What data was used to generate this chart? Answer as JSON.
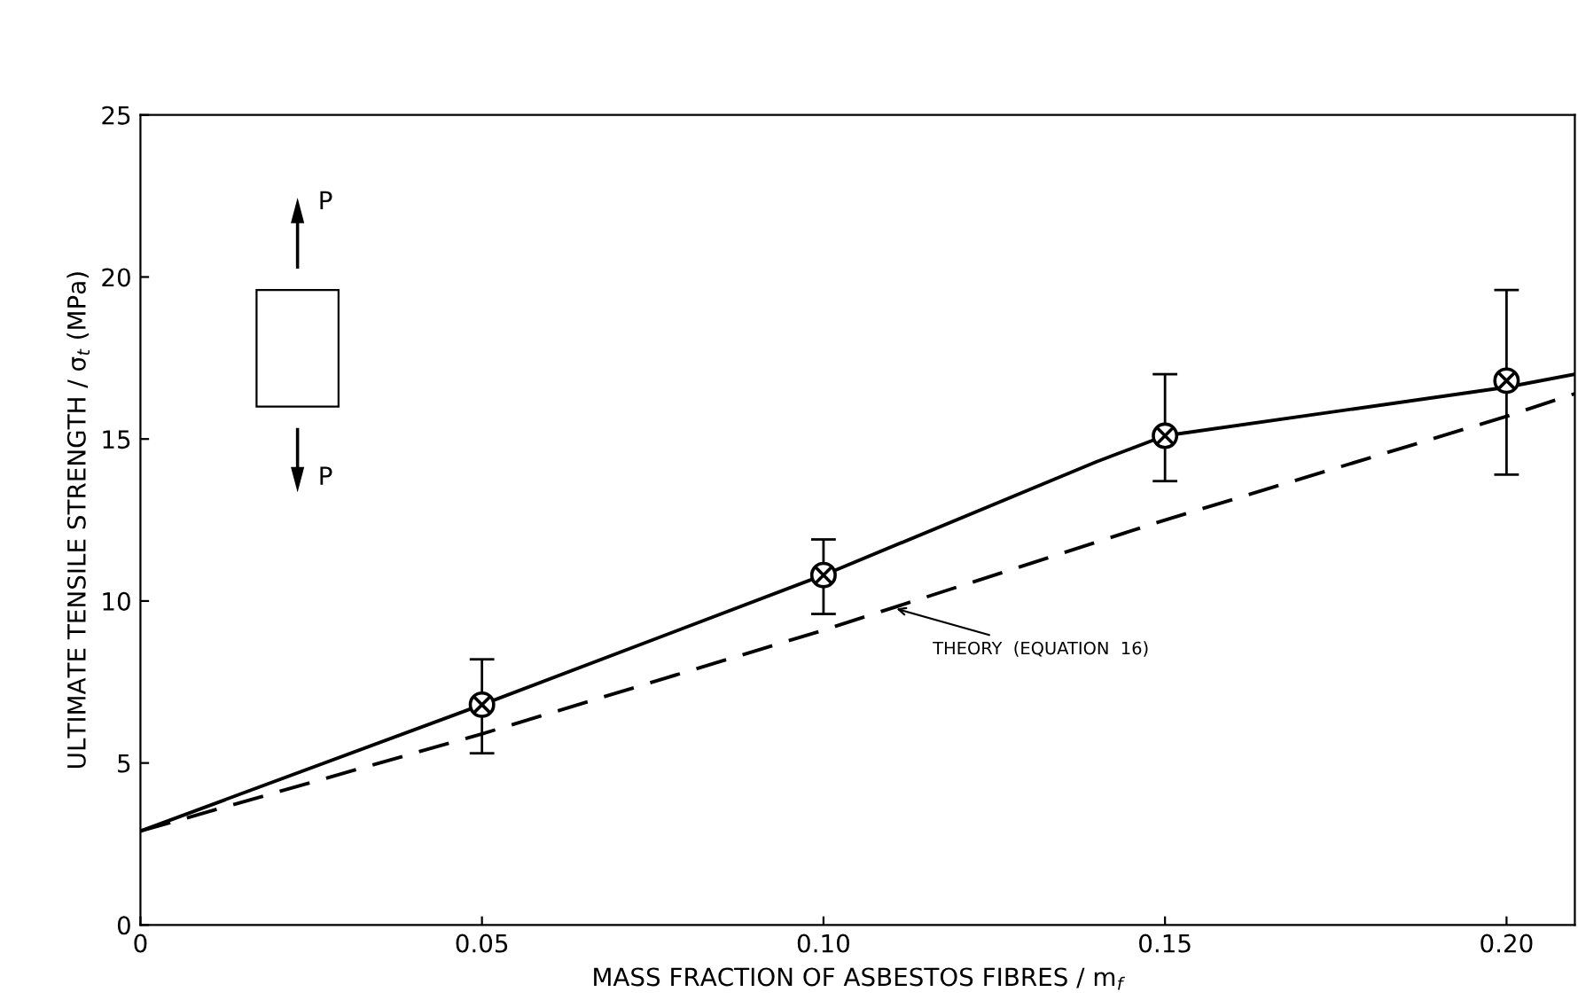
{
  "chart_data": {
    "type": "line",
    "xlabel": "MASS FRACTION OF ASBESTOS FIBRES / m$_{f}$",
    "ylabel": "ULTIMATE TENSILE STRENGTH / σ$_{t}$ (MPa)",
    "xlim": [
      0,
      0.21
    ],
    "ylim": [
      0,
      25
    ],
    "xticks": [
      0,
      0.05,
      {
        "value": 0.1,
        "label": "0.10"
      },
      0.15,
      {
        "value": 0.2,
        "label": "0.20"
      }
    ],
    "yticks": [
      0,
      5,
      10,
      15,
      20,
      25
    ],
    "grid": false,
    "legend": false,
    "series": [
      {
        "type": "scatter",
        "color": "#000000",
        "marker": "cross",
        "x": [
          0.05,
          0.1,
          0.15,
          0.2
        ],
        "values": [
          6.8,
          10.8,
          15.1,
          16.8
        ],
        "errors": [
          [
            5.3,
            8.2
          ],
          [
            9.6,
            11.9
          ],
          [
            13.7,
            17.0
          ],
          [
            13.9,
            19.6
          ]
        ]
      },
      {
        "color": "#000000",
        "line_style": "solid",
        "x": [
          0,
          0.05,
          0.1,
          0.14,
          0.15,
          0.2,
          0.21
        ],
        "values": [
          2.9,
          6.8,
          10.8,
          14.3,
          15.1,
          16.6,
          17.0
        ]
      },
      {
        "color": "#000000",
        "line_style": "dashed",
        "x": [
          0,
          0.05,
          0.1,
          0.15,
          0.2,
          0.21
        ],
        "values": [
          2.9,
          5.9,
          9.1,
          12.5,
          15.7,
          16.4
        ]
      }
    ],
    "annotations": [
      {
        "text": "THEORY  (EQUATION  16)",
        "x": 0.11,
        "y": 9.8
      },
      "P",
      "P"
    ]
  }
}
